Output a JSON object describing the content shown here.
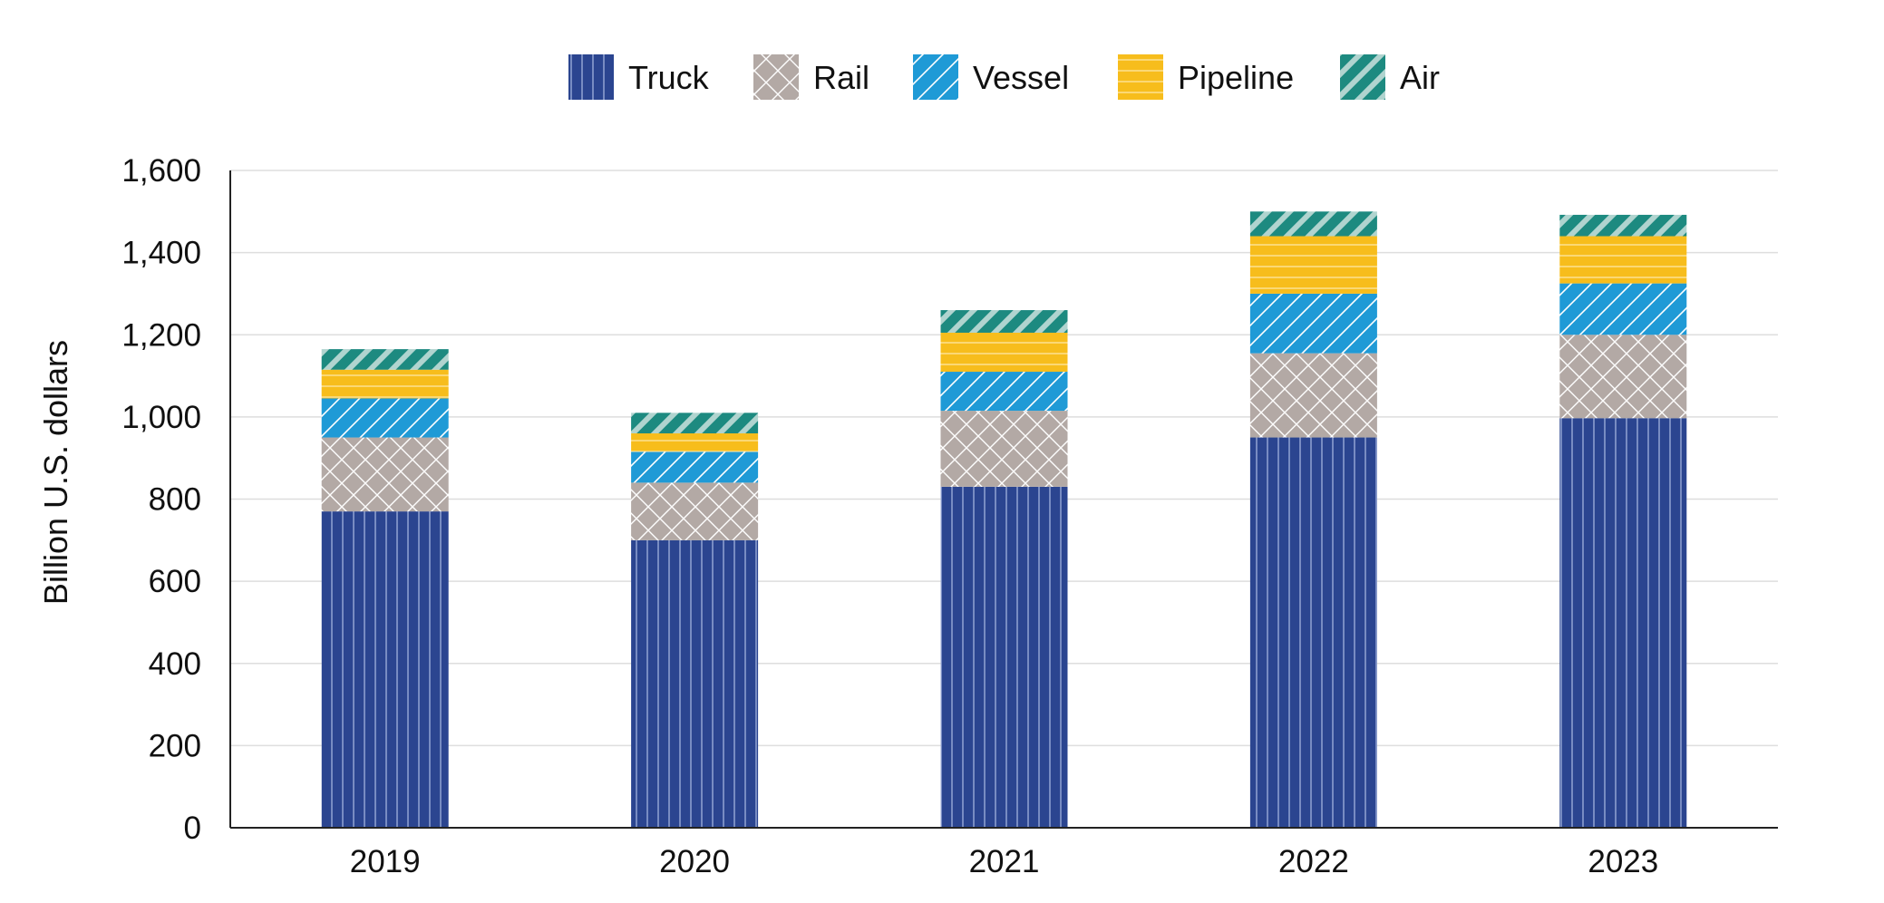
{
  "chart_data": {
    "type": "bar",
    "stacked": true,
    "title": "",
    "xlabel": "",
    "ylabel": "Billion U.S. dollars",
    "ylim": [
      0,
      1600
    ],
    "yticks": [
      0,
      200,
      400,
      600,
      800,
      1000,
      1200,
      1400,
      1600
    ],
    "ytick_labels": [
      "0",
      "200",
      "400",
      "600",
      "800",
      "1,000",
      "1,200",
      "1,400",
      "1,600"
    ],
    "categories": [
      "2019",
      "2020",
      "2021",
      "2022",
      "2023"
    ],
    "grid": true,
    "legend_position": "top",
    "series": [
      {
        "name": "Truck",
        "color": "#2b4590",
        "pattern": "vertical-lines",
        "values": [
          770,
          700,
          830,
          950,
          997
        ]
      },
      {
        "name": "Rail",
        "color": "#b3a9a5",
        "pattern": "crosshatch",
        "values": [
          180,
          140,
          185,
          205,
          203
        ]
      },
      {
        "name": "Vessel",
        "color": "#1f9ad6",
        "pattern": "diagonal-lines",
        "values": [
          95,
          75,
          95,
          145,
          125
        ]
      },
      {
        "name": "Pipeline",
        "color": "#f7bd1c",
        "pattern": "horizontal-lines",
        "values": [
          70,
          45,
          95,
          140,
          115
        ]
      },
      {
        "name": "Air",
        "color": "#1d8a80",
        "pattern": "wide-diagonal",
        "values": [
          50,
          50,
          55,
          60,
          52
        ]
      }
    ]
  }
}
